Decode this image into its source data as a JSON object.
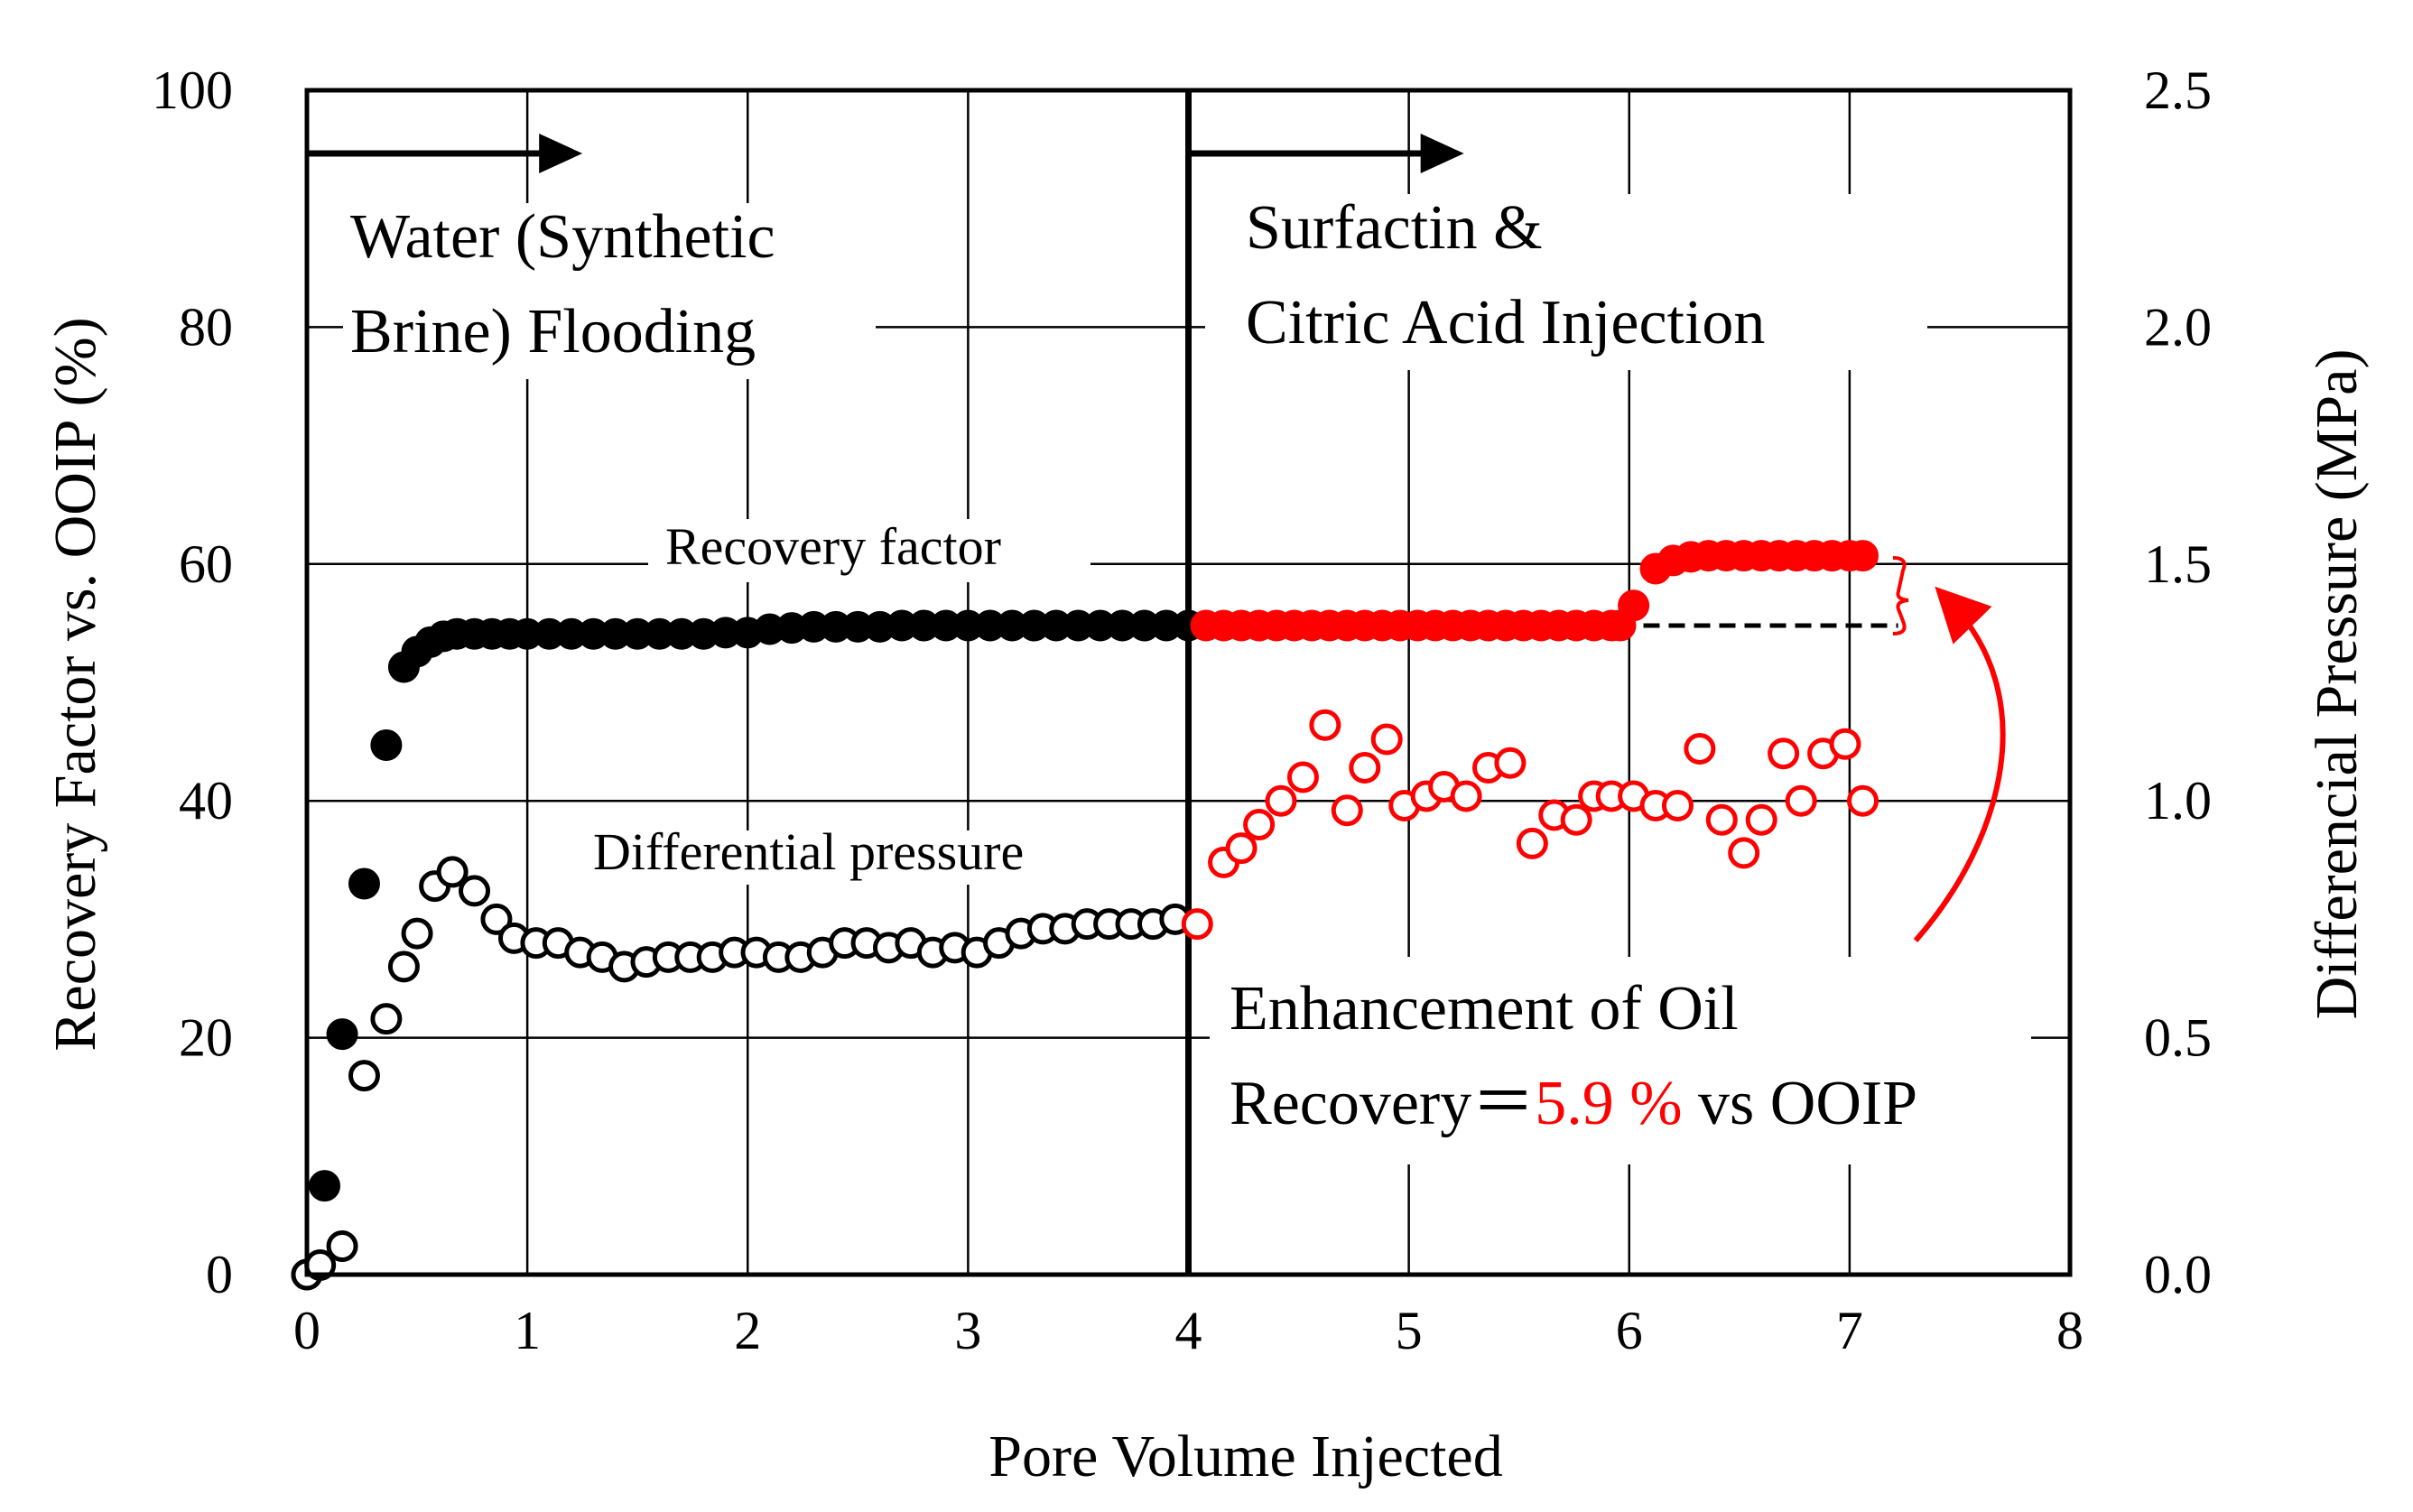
{
  "chart_data": {
    "type": "scatter",
    "xlabel": "Pore Volume Injected",
    "ylabel": "Recovery Factor vs. OOIP (%)",
    "y2label": "Differencial Pressure (MPa)",
    "xlim": [
      0,
      8
    ],
    "ylim": [
      0,
      100
    ],
    "y2lim": [
      0.0,
      2.5
    ],
    "x_ticks": [
      "0",
      "1",
      "2",
      "3",
      "4",
      "5",
      "6",
      "7",
      "8"
    ],
    "y_ticks": [
      "0",
      "20",
      "40",
      "60",
      "80",
      "100"
    ],
    "y2_ticks": [
      "0.0",
      "0.5",
      "1.0",
      "1.5",
      "2.0",
      "2.5"
    ],
    "grid": true,
    "colors": {
      "water_phase": "#000000",
      "surfactin_phase": "#ff0000"
    },
    "series": [
      {
        "name": "Recovery factor",
        "axis": "left",
        "marker": "filled-circle",
        "points": [
          [
            0.0,
            0.0
          ],
          [
            0.08,
            7.5
          ],
          [
            0.16,
            20.3
          ],
          [
            0.26,
            33.0
          ],
          [
            0.36,
            44.7
          ],
          [
            0.44,
            51.3
          ],
          [
            0.5,
            52.6
          ],
          [
            0.56,
            53.4
          ],
          [
            0.62,
            53.9
          ],
          [
            0.68,
            54.1
          ],
          [
            0.76,
            54.1
          ],
          [
            0.84,
            54.1
          ],
          [
            0.92,
            54.1
          ],
          [
            1.0,
            54.1
          ],
          [
            1.1,
            54.1
          ],
          [
            1.2,
            54.1
          ],
          [
            1.3,
            54.1
          ],
          [
            1.4,
            54.1
          ],
          [
            1.5,
            54.1
          ],
          [
            1.6,
            54.1
          ],
          [
            1.7,
            54.1
          ],
          [
            1.8,
            54.1
          ],
          [
            1.9,
            54.2
          ],
          [
            2.0,
            54.2
          ],
          [
            2.1,
            54.5
          ],
          [
            2.2,
            54.6
          ],
          [
            2.3,
            54.7
          ],
          [
            2.4,
            54.7
          ],
          [
            2.5,
            54.7
          ],
          [
            2.6,
            54.7
          ],
          [
            2.7,
            54.8
          ],
          [
            2.8,
            54.8
          ],
          [
            2.9,
            54.8
          ],
          [
            3.0,
            54.8
          ],
          [
            3.1,
            54.8
          ],
          [
            3.2,
            54.8
          ],
          [
            3.3,
            54.8
          ],
          [
            3.4,
            54.8
          ],
          [
            3.5,
            54.8
          ],
          [
            3.6,
            54.8
          ],
          [
            3.7,
            54.8
          ],
          [
            3.8,
            54.8
          ],
          [
            3.9,
            54.8
          ],
          [
            4.0,
            54.8
          ],
          [
            4.08,
            54.8
          ],
          [
            4.16,
            54.8
          ],
          [
            4.24,
            54.8
          ],
          [
            4.32,
            54.8
          ],
          [
            4.4,
            54.8
          ],
          [
            4.48,
            54.8
          ],
          [
            4.56,
            54.8
          ],
          [
            4.64,
            54.8
          ],
          [
            4.72,
            54.8
          ],
          [
            4.8,
            54.8
          ],
          [
            4.88,
            54.8
          ],
          [
            4.96,
            54.8
          ],
          [
            5.04,
            54.8
          ],
          [
            5.12,
            54.8
          ],
          [
            5.2,
            54.8
          ],
          [
            5.28,
            54.8
          ],
          [
            5.36,
            54.8
          ],
          [
            5.44,
            54.8
          ],
          [
            5.52,
            54.8
          ],
          [
            5.6,
            54.8
          ],
          [
            5.68,
            54.8
          ],
          [
            5.76,
            54.8
          ],
          [
            5.84,
            54.8
          ],
          [
            5.92,
            54.8
          ],
          [
            5.96,
            54.8
          ],
          [
            6.02,
            56.5
          ],
          [
            6.12,
            59.6
          ],
          [
            6.2,
            60.3
          ],
          [
            6.28,
            60.6
          ],
          [
            6.36,
            60.7
          ],
          [
            6.44,
            60.7
          ],
          [
            6.52,
            60.7
          ],
          [
            6.6,
            60.7
          ],
          [
            6.68,
            60.7
          ],
          [
            6.76,
            60.7
          ],
          [
            6.84,
            60.7
          ],
          [
            6.92,
            60.7
          ],
          [
            7.0,
            60.7
          ],
          [
            7.06,
            60.7
          ]
        ]
      },
      {
        "name": "Differential pressure",
        "axis": "right",
        "marker": "open-circle",
        "points": [
          [
            0.0,
            0.0
          ],
          [
            0.06,
            0.02
          ],
          [
            0.16,
            0.06
          ],
          [
            0.26,
            0.42
          ],
          [
            0.36,
            0.54
          ],
          [
            0.44,
            0.65
          ],
          [
            0.5,
            0.72
          ],
          [
            0.58,
            0.82
          ],
          [
            0.66,
            0.85
          ],
          [
            0.76,
            0.81
          ],
          [
            0.86,
            0.75
          ],
          [
            0.94,
            0.71
          ],
          [
            1.04,
            0.7
          ],
          [
            1.14,
            0.7
          ],
          [
            1.24,
            0.68
          ],
          [
            1.34,
            0.67
          ],
          [
            1.44,
            0.65
          ],
          [
            1.54,
            0.66
          ],
          [
            1.64,
            0.67
          ],
          [
            1.74,
            0.67
          ],
          [
            1.84,
            0.67
          ],
          [
            1.94,
            0.68
          ],
          [
            2.04,
            0.68
          ],
          [
            2.14,
            0.67
          ],
          [
            2.24,
            0.67
          ],
          [
            2.34,
            0.68
          ],
          [
            2.44,
            0.7
          ],
          [
            2.54,
            0.7
          ],
          [
            2.64,
            0.69
          ],
          [
            2.74,
            0.7
          ],
          [
            2.84,
            0.68
          ],
          [
            2.94,
            0.69
          ],
          [
            3.04,
            0.68
          ],
          [
            3.14,
            0.7
          ],
          [
            3.24,
            0.72
          ],
          [
            3.34,
            0.73
          ],
          [
            3.44,
            0.73
          ],
          [
            3.54,
            0.74
          ],
          [
            3.64,
            0.74
          ],
          [
            3.74,
            0.74
          ],
          [
            3.84,
            0.74
          ],
          [
            3.94,
            0.75
          ],
          [
            4.04,
            0.74
          ],
          [
            4.16,
            0.87
          ],
          [
            4.24,
            0.9
          ],
          [
            4.32,
            0.95
          ],
          [
            4.42,
            1.0
          ],
          [
            4.52,
            1.05
          ],
          [
            4.62,
            1.16
          ],
          [
            4.72,
            0.98
          ],
          [
            4.8,
            1.07
          ],
          [
            4.9,
            1.13
          ],
          [
            4.98,
            0.99
          ],
          [
            5.08,
            1.01
          ],
          [
            5.16,
            1.03
          ],
          [
            5.26,
            1.01
          ],
          [
            5.36,
            1.07
          ],
          [
            5.46,
            1.08
          ],
          [
            5.56,
            0.91
          ],
          [
            5.66,
            0.97
          ],
          [
            5.76,
            0.96
          ],
          [
            5.84,
            1.01
          ],
          [
            5.92,
            1.01
          ],
          [
            6.02,
            1.01
          ],
          [
            6.12,
            0.99
          ],
          [
            6.22,
            0.99
          ],
          [
            6.32,
            1.11
          ],
          [
            6.42,
            0.96
          ],
          [
            6.52,
            0.89
          ],
          [
            6.6,
            0.96
          ],
          [
            6.7,
            1.1
          ],
          [
            6.78,
            1.0
          ],
          [
            6.88,
            1.1
          ],
          [
            6.98,
            1.12
          ],
          [
            7.06,
            1.0
          ]
        ]
      }
    ],
    "switch_x": 4,
    "baseline_y": 54.8,
    "phase_labels": {
      "water": [
        "Water (Synthetic",
        "Brine) Flooding"
      ],
      "surfactin": [
        "Surfactin &",
        "Citric Acid Injection"
      ]
    },
    "series_labels": {
      "recovery": "Recovery factor",
      "pressure": "Differential pressure"
    },
    "enhancement": {
      "line1": "Enhancement of Oil",
      "line2_prefix": "Recovery＝",
      "value_text": "5.9 %",
      "line2_suffix": " vs OOIP"
    }
  }
}
